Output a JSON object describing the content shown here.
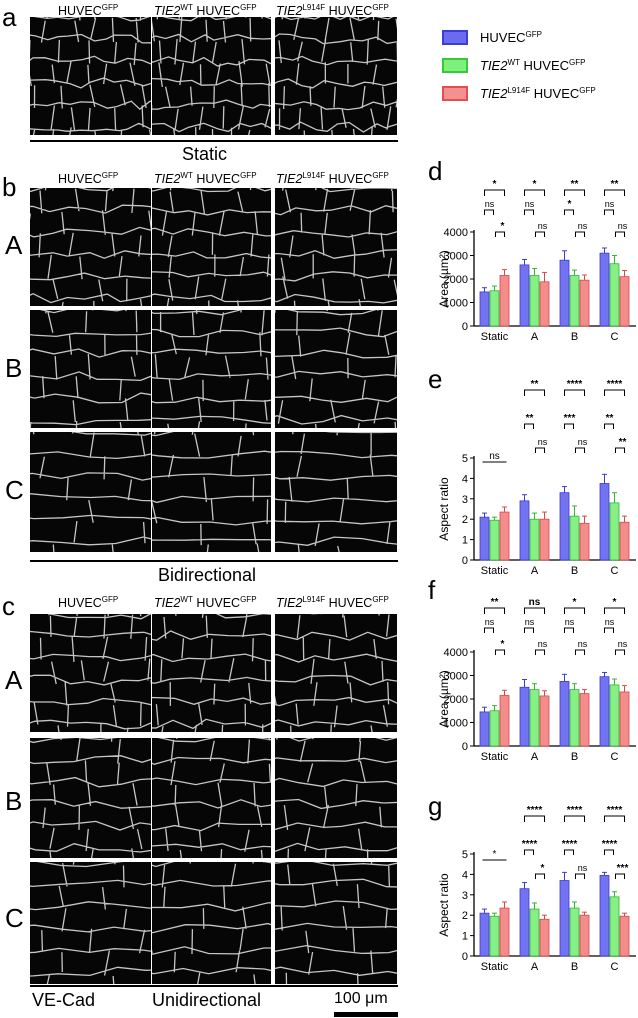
{
  "panel_letters": {
    "a": "a",
    "b": "b",
    "c": "c",
    "d": "d",
    "e": "e",
    "f": "f",
    "g": "g"
  },
  "row_letters": {
    "A": "A",
    "B": "B",
    "C": "C"
  },
  "column_headers": {
    "col1": {
      "base": "HUVEC",
      "sup": "GFP"
    },
    "col2": {
      "gene": "TIE2",
      "gene_sup": "WT",
      "base": " HUVEC",
      "sup": "GFP"
    },
    "col3": {
      "gene": "TIE2",
      "gene_sup": "L914F",
      "base": " HUVEC",
      "sup": "GFP"
    }
  },
  "condition_labels": {
    "static": "Static",
    "bidirectional": "Bidirectional",
    "unidirectional": "Unidirectional"
  },
  "stain_label": "VE-Cad",
  "scale_bar_label": "100 μm",
  "legend": [
    {
      "pre": "",
      "italic": "",
      "text": "HUVEC",
      "sup": "GFP",
      "rest": "",
      "color": "#6b6bf0",
      "border": "#3c3cd8"
    },
    {
      "pre": "",
      "italic": "TIE2",
      "text": "",
      "sup": "WT",
      "rest": " HUVEC",
      "sup2": "GFP",
      "color": "#7ef07e",
      "border": "#38c838"
    },
    {
      "pre": "",
      "italic": "TIE2",
      "text": "",
      "sup": "L914F",
      "rest": " HUVEC",
      "sup2": "GFP",
      "color": "#f49090",
      "border": "#e05050"
    }
  ],
  "colors": {
    "s1": "#7373f2",
    "s2": "#86f086",
    "s3": "#f48c8c",
    "s1_edge": "#3c3ccc",
    "s2_edge": "#30b830",
    "s3_edge": "#d84848",
    "micro_bg": "#060606",
    "membrane": "#e8e8e8"
  },
  "chart_data": [
    {
      "id": "d",
      "type": "bar",
      "categories": [
        "Static",
        "A",
        "B",
        "C"
      ],
      "ylabel": "Area (µm²)",
      "ylim": [
        0,
        4000
      ],
      "yticks": [
        0,
        1000,
        2000,
        3000,
        4000
      ],
      "series": [
        {
          "values": [
            1450,
            2600,
            2800,
            3100
          ],
          "errors": [
            180,
            230,
            400,
            220
          ]
        },
        {
          "values": [
            1500,
            2150,
            2150,
            2650
          ],
          "errors": [
            200,
            300,
            230,
            350
          ]
        },
        {
          "values": [
            2150,
            1880,
            1950,
            2100
          ],
          "errors": [
            250,
            400,
            220,
            260
          ]
        }
      ],
      "significance": [
        [
          [
            "*"
          ],
          [
            "ns",
            "*"
          ]
        ],
        [
          [
            "*"
          ],
          [
            "ns",
            "ns"
          ]
        ],
        [
          [
            "**"
          ],
          [
            "*",
            "ns"
          ]
        ],
        [
          [
            "**"
          ],
          [
            "ns",
            "ns"
          ]
        ]
      ]
    },
    {
      "id": "e",
      "type": "bar",
      "categories": [
        "Static",
        "A",
        "B",
        "C"
      ],
      "ylabel": "Aspect ratio",
      "ylim": [
        0,
        5
      ],
      "yticks": [
        0,
        1,
        2,
        3,
        4,
        5
      ],
      "series": [
        {
          "values": [
            2.1,
            2.9,
            3.3,
            3.75
          ],
          "errors": [
            0.2,
            0.3,
            0.3,
            0.45
          ]
        },
        {
          "values": [
            1.95,
            2.0,
            2.15,
            2.8
          ],
          "errors": [
            0.15,
            0.3,
            0.5,
            0.5
          ]
        },
        {
          "values": [
            2.35,
            2.0,
            1.8,
            1.85
          ],
          "errors": [
            0.25,
            0.35,
            0.35,
            0.3
          ]
        }
      ],
      "significance": [
        [
          [
            "ns"
          ],
          []
        ],
        [
          [
            "**"
          ],
          [
            "**",
            "ns"
          ]
        ],
        [
          [
            "****"
          ],
          [
            "***",
            "ns"
          ]
        ],
        [
          [
            "****"
          ],
          [
            "**",
            "**"
          ]
        ]
      ]
    },
    {
      "id": "f",
      "type": "bar",
      "categories": [
        "Static",
        "A",
        "B",
        "C"
      ],
      "ylabel": "Area (µm²)",
      "ylim": [
        0,
        4000
      ],
      "yticks": [
        0,
        1000,
        2000,
        3000,
        4000
      ],
      "series": [
        {
          "values": [
            1450,
            2500,
            2750,
            2950
          ],
          "errors": [
            200,
            330,
            300,
            180
          ]
        },
        {
          "values": [
            1500,
            2400,
            2400,
            2600
          ],
          "errors": [
            220,
            250,
            250,
            250
          ]
        },
        {
          "values": [
            2150,
            2130,
            2230,
            2300
          ],
          "errors": [
            220,
            220,
            170,
            270
          ]
        }
      ],
      "significance": [
        [
          [
            "**"
          ],
          [
            "ns",
            "*"
          ]
        ],
        [
          [
            "ns"
          ],
          [
            "ns",
            "ns"
          ]
        ],
        [
          [
            "*"
          ],
          [
            "ns",
            "ns"
          ]
        ],
        [
          [
            "*"
          ],
          [
            "ns",
            "ns"
          ]
        ]
      ]
    },
    {
      "id": "g",
      "type": "bar",
      "categories": [
        "Static",
        "A",
        "B",
        "C"
      ],
      "ylabel": "Aspect ratio",
      "ylim": [
        0,
        5
      ],
      "yticks": [
        0,
        1,
        2,
        3,
        4,
        5
      ],
      "series": [
        {
          "values": [
            2.1,
            3.3,
            3.7,
            3.95
          ],
          "errors": [
            0.2,
            0.3,
            0.4,
            0.15
          ]
        },
        {
          "values": [
            1.95,
            2.3,
            2.35,
            2.9
          ],
          "errors": [
            0.15,
            0.3,
            0.3,
            0.25
          ]
        },
        {
          "values": [
            2.35,
            1.8,
            2.0,
            1.95
          ],
          "errors": [
            0.3,
            0.2,
            0.15,
            0.15
          ]
        }
      ],
      "significance": [
        [
          [
            "*"
          ],
          []
        ],
        [
          [
            "****"
          ],
          [
            "****",
            "*"
          ]
        ],
        [
          [
            "****"
          ],
          [
            "****",
            "ns"
          ]
        ],
        [
          [
            "****"
          ],
          [
            "****",
            "***"
          ]
        ]
      ]
    }
  ]
}
